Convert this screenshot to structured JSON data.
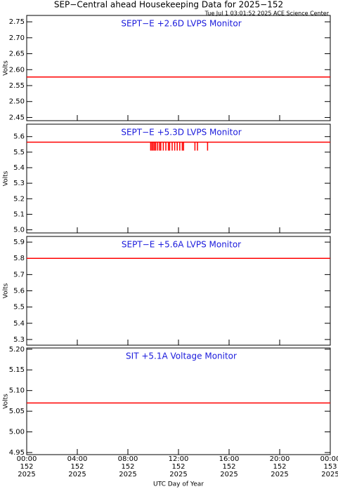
{
  "chart_data": [
    {
      "type": "line",
      "title": "SEP−Central ahead Housekeeping Data for 2025−152",
      "subtitle": "Tue Jul  1 03:01:52 2025 ACE Science Center",
      "panel_title": "SEPT−E +2.6D LVPS Monitor",
      "ylabel": "Volts",
      "ylim": [
        2.44,
        2.77
      ],
      "yticks": [
        {
          "value": 2.45,
          "label": "2.45"
        },
        {
          "value": 2.5,
          "label": "2.50"
        },
        2.55,
        {
          "value": 2.6,
          "label": "2.60"
        },
        2.65,
        {
          "value": 2.7,
          "label": "2.70"
        },
        2.75
      ],
      "xlim": [
        0,
        24
      ],
      "series": [
        {
          "color": "#ff0000",
          "x": [
            0,
            24
          ],
          "values": [
            2.577,
            2.577
          ]
        }
      ]
    },
    {
      "type": "line",
      "panel_title": "SEPT−E +5.3D LVPS Monitor",
      "ylabel": "Volts",
      "ylim": [
        4.98,
        5.68
      ],
      "yticks": [
        {
          "value": 5.0,
          "label": "5.0"
        },
        5.1,
        5.2,
        5.3,
        5.4,
        5.5,
        5.6
      ],
      "xlim": [
        0,
        24
      ],
      "series": [
        {
          "color": "#ff0000",
          "x": [
            0,
            24
          ],
          "values": [
            5.564,
            5.564
          ]
        }
      ],
      "dips": {
        "color": "#ff0000",
        "from": 5.564,
        "x": [
          9.8,
          9.9,
          10.0,
          10.1,
          10.2,
          10.35,
          10.5,
          10.6,
          10.8,
          11.0,
          11.2,
          11.3,
          11.5,
          11.7,
          11.9,
          12.1,
          12.3,
          12.4,
          13.3,
          13.5,
          14.3
        ],
        "values": [
          5.51,
          5.51,
          5.51,
          5.51,
          5.51,
          5.51,
          5.51,
          5.51,
          5.51,
          5.51,
          5.51,
          5.51,
          5.51,
          5.51,
          5.51,
          5.51,
          5.51,
          5.51,
          5.51,
          5.51,
          5.51
        ]
      }
    },
    {
      "type": "line",
      "panel_title": "SEPT−E +5.6A LVPS Monitor",
      "ylabel": "Volts",
      "ylim": [
        5.265,
        5.935
      ],
      "yticks": [
        5.3,
        5.4,
        5.5,
        5.6,
        5.7,
        5.8,
        5.9
      ],
      "xlim": [
        0,
        24
      ],
      "series": [
        {
          "color": "#ff0000",
          "x": [
            0,
            24
          ],
          "values": [
            5.8,
            5.8
          ]
        }
      ]
    },
    {
      "type": "line",
      "panel_title": "SIT +5.1A Voltage Monitor",
      "ylabel": "Volts",
      "ylim": [
        4.945,
        5.203
      ],
      "yticks": [
        4.95,
        {
          "value": 5.0,
          "label": "5.00"
        },
        5.05,
        {
          "value": 5.1,
          "label": "5.10"
        },
        5.15,
        {
          "value": 5.2,
          "label": "5.20"
        }
      ],
      "xlim": [
        0,
        24
      ],
      "xticks": [
        {
          "value": 0,
          "label": "00:00"
        },
        {
          "value": 4,
          "label": "04:00"
        },
        {
          "value": 8,
          "label": "08:00"
        },
        {
          "value": 12,
          "label": "12:00"
        },
        {
          "value": 16,
          "label": "16:00"
        },
        {
          "value": 20,
          "label": "20:00"
        },
        {
          "value": 24,
          "label": "00:00"
        }
      ],
      "xtick_days": [
        "152",
        "152",
        "152",
        "152",
        "152",
        "152",
        "153"
      ],
      "xtick_years": [
        "2025",
        "2025",
        "2025",
        "2025",
        "2025",
        "2025",
        "2025"
      ],
      "xlabel": "UTC Day of Year",
      "series": [
        {
          "color": "#ff0000",
          "x": [
            0,
            24
          ],
          "values": [
            5.07,
            5.07
          ]
        }
      ]
    }
  ]
}
